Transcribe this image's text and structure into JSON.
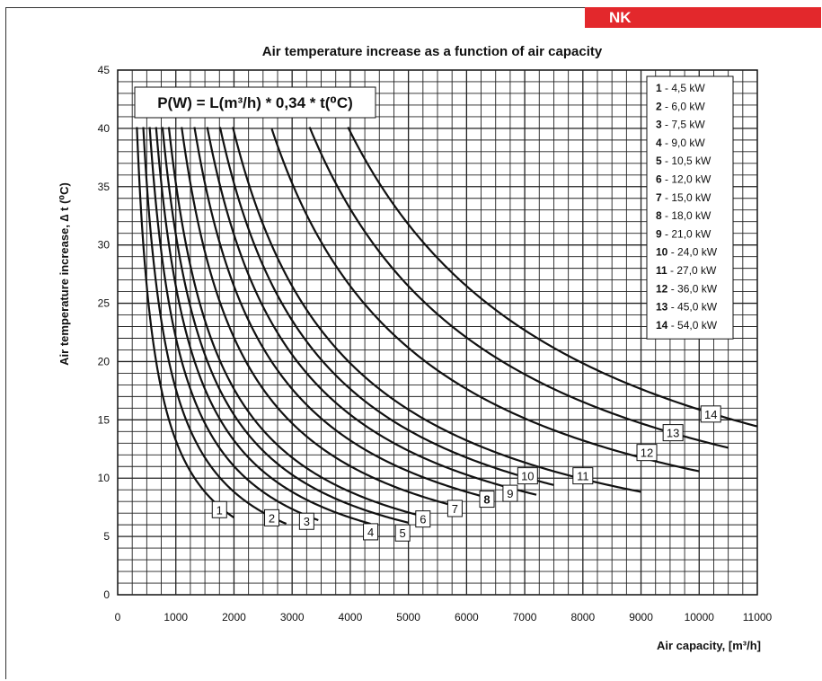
{
  "badge": {
    "label": "NK",
    "color": "#e3282c"
  },
  "chart_data": {
    "type": "line",
    "title": "Air temperature increase as a function of air capacity",
    "xlabel": "Air capacity, [m³/h]",
    "ylabel": "Air temperature increase, ∆ t (⁰C)",
    "formula": "P(W) = L(m³/h) * 0,34 * t(⁰C)",
    "xlim": [
      0,
      11000
    ],
    "ylim": [
      0,
      45
    ],
    "x_ticks": [
      "0",
      "1000",
      "2000",
      "3000",
      "4000",
      "5000",
      "6000",
      "7000",
      "8000",
      "9000",
      "10000",
      "11000"
    ],
    "y_ticks": [
      "0",
      "5",
      "10",
      "15",
      "20",
      "25",
      "30",
      "35",
      "40",
      "45"
    ],
    "grid": true,
    "legend_position": "top-right",
    "series": [
      {
        "id": "1",
        "name": "4,5 kW",
        "x_range": [
          330,
          2000
        ]
      },
      {
        "id": "2",
        "name": "6,0 kW",
        "x_range": [
          440,
          2900
        ]
      },
      {
        "id": "3",
        "name": "7,5 kW",
        "x_range": [
          550,
          3450
        ]
      },
      {
        "id": "4",
        "name": "9,0 kW",
        "x_range": [
          660,
          4350
        ]
      },
      {
        "id": "5",
        "name": "10,5 kW",
        "x_range": [
          770,
          5000
        ]
      },
      {
        "id": "6",
        "name": "12,0 kW",
        "x_range": [
          880,
          5300
        ]
      },
      {
        "id": "7",
        "name": "15,0 kW",
        "x_range": [
          1100,
          5900
        ]
      },
      {
        "id": "8",
        "name": "18,0 kW",
        "x_range": [
          1320,
          6400
        ]
      },
      {
        "id": "9",
        "name": "21,0 kW",
        "x_range": [
          1540,
          7200
        ]
      },
      {
        "id": "10",
        "name": "24,0 kW",
        "x_range": [
          1760,
          7500
        ]
      },
      {
        "id": "11",
        "name": "27,0 kW",
        "x_range": [
          1980,
          9000
        ]
      },
      {
        "id": "12",
        "name": "36,0 kW",
        "x_range": [
          2650,
          10000
        ]
      },
      {
        "id": "13",
        "name": "45,0 kW",
        "x_range": [
          3300,
          10500
        ]
      },
      {
        "id": "14",
        "name": "54,0 kW",
        "x_range": [
          3960,
          11000
        ]
      }
    ],
    "curve_labels": [
      {
        "id": "1",
        "at": [
          1750,
          7.3
        ]
      },
      {
        "id": "2",
        "at": [
          2650,
          6.6
        ]
      },
      {
        "id": "3",
        "at": [
          3250,
          6.3
        ]
      },
      {
        "id": "4",
        "at": [
          4350,
          5.4
        ]
      },
      {
        "id": "5",
        "at": [
          4900,
          5.3
        ]
      },
      {
        "id": "6",
        "at": [
          5250,
          6.5
        ]
      },
      {
        "id": "7",
        "at": [
          5800,
          7.4
        ]
      },
      {
        "id": "8",
        "at": [
          6350,
          8.2
        ]
      },
      {
        "id": "9",
        "at": [
          6750,
          8.7
        ]
      },
      {
        "id": "10",
        "at": [
          7050,
          10.2
        ]
      },
      {
        "id": "11",
        "at": [
          8000,
          10.2
        ]
      },
      {
        "id": "12",
        "at": [
          9100,
          12.2
        ]
      },
      {
        "id": "13",
        "at": [
          9550,
          13.9
        ]
      },
      {
        "id": "14",
        "at": [
          10200,
          15.5
        ]
      }
    ]
  }
}
